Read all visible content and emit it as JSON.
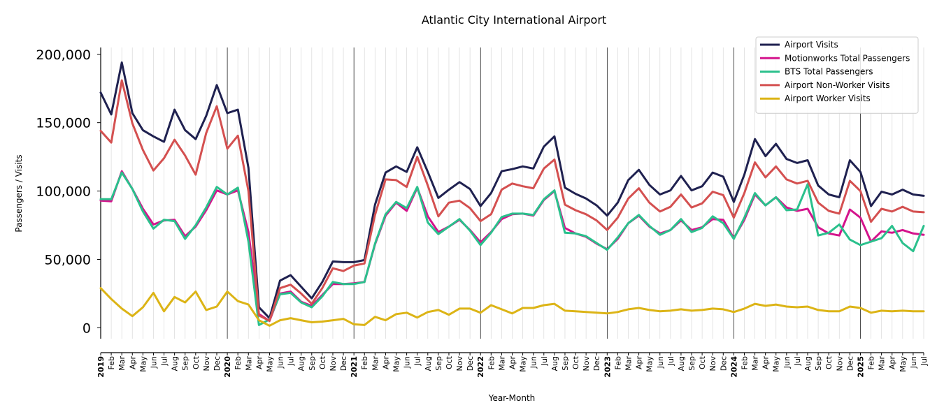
{
  "chart_data": {
    "type": "line",
    "title": "Atlantic City International Airport",
    "xlabel": "Year-Month",
    "ylabel": "Passengers / Visits",
    "ylim": [
      -8000,
      205000
    ],
    "yticks": [
      0,
      50000,
      100000,
      150000,
      200000
    ],
    "ytick_labels": [
      "0",
      "50,000",
      "100,000",
      "150,000",
      "200,000"
    ],
    "grid": "vertical monthly gridlines, darker lines at each January",
    "legend_position": "top-right",
    "x": [
      "2019-01",
      "2019-02",
      "2019-03",
      "2019-04",
      "2019-05",
      "2019-06",
      "2019-07",
      "2019-08",
      "2019-09",
      "2019-10",
      "2019-11",
      "2019-12",
      "2020-01",
      "2020-02",
      "2020-03",
      "2020-04",
      "2020-05",
      "2020-06",
      "2020-07",
      "2020-08",
      "2020-09",
      "2020-10",
      "2020-11",
      "2020-12",
      "2021-01",
      "2021-02",
      "2021-03",
      "2021-04",
      "2021-05",
      "2021-06",
      "2021-07",
      "2021-08",
      "2021-09",
      "2021-10",
      "2021-11",
      "2021-12",
      "2022-01",
      "2022-02",
      "2022-03",
      "2022-04",
      "2022-05",
      "2022-06",
      "2022-07",
      "2022-08",
      "2022-09",
      "2022-10",
      "2022-11",
      "2022-12",
      "2023-01",
      "2023-02",
      "2023-03",
      "2023-04",
      "2023-05",
      "2023-06",
      "2023-07",
      "2023-08",
      "2023-09",
      "2023-10",
      "2023-11",
      "2023-12",
      "2024-01",
      "2024-02",
      "2024-03",
      "2024-04",
      "2024-05",
      "2024-06",
      "2024-07",
      "2024-08",
      "2024-09",
      "2024-10",
      "2024-11",
      "2024-12",
      "2025-01",
      "2025-02",
      "2025-03",
      "2025-04",
      "2025-05",
      "2025-06",
      "2025-07"
    ],
    "xtick_labels": [
      "2019",
      "Feb",
      "Mar",
      "Apr",
      "May",
      "Jun",
      "Jul",
      "Aug",
      "Sep",
      "Oct",
      "Nov",
      "Dec",
      "2020",
      "Feb",
      "Mar",
      "Apr",
      "May",
      "Jun",
      "Jul",
      "Aug",
      "Sep",
      "Oct",
      "Nov",
      "Dec",
      "2021",
      "Feb",
      "Mar",
      "Apr",
      "May",
      "Jun",
      "Jul",
      "Aug",
      "Sep",
      "Oct",
      "Nov",
      "Dec",
      "2022",
      "Feb",
      "Mar",
      "Apr",
      "May",
      "Jun",
      "Jul",
      "Aug",
      "Sep",
      "Oct",
      "Nov",
      "Dec",
      "2023",
      "Feb",
      "Mar",
      "Apr",
      "May",
      "Jun",
      "Jul",
      "Aug",
      "Sep",
      "Oct",
      "Nov",
      "Dec",
      "2024",
      "Feb",
      "Mar",
      "Apr",
      "May",
      "Jun",
      "Jul",
      "Aug",
      "Sep",
      "Oct",
      "Nov",
      "Dec",
      "2025",
      "Feb",
      "Mar",
      "Apr",
      "May",
      "Jun",
      "Jul"
    ],
    "series": [
      {
        "name": "Airport Visits",
        "color": "#1f2150",
        "values": [
          172000,
          156000,
          194000,
          157000,
          144500,
          140000,
          136000,
          159500,
          144500,
          138000,
          155000,
          177500,
          157000,
          159500,
          117000,
          15000,
          7000,
          34500,
          38500,
          30000,
          21500,
          33500,
          48500,
          48000,
          48000,
          49500,
          90000,
          113500,
          118000,
          114000,
          132000,
          114000,
          95000,
          101000,
          106500,
          101500,
          89000,
          98500,
          114500,
          116000,
          118000,
          116500,
          132500,
          140000,
          102500,
          98000,
          94500,
          89500,
          82000,
          91500,
          108000,
          115500,
          104500,
          97500,
          100500,
          111000,
          100500,
          103500,
          113500,
          110500,
          92000,
          112000,
          138000,
          125500,
          134500,
          123500,
          120500,
          122500,
          104000,
          97500,
          95500,
          122500,
          114000,
          89000,
          99500,
          97500,
          101000,
          97500,
          96500
        ]
      },
      {
        "name": "Motionworks Total Passengers",
        "color": "#d4148c",
        "values": [
          93000,
          92500,
          114500,
          101500,
          87000,
          75500,
          78500,
          79000,
          67000,
          74000,
          86000,
          100500,
          97500,
          100500,
          70000,
          10000,
          5000,
          25000,
          26500,
          19000,
          16000,
          24000,
          32000,
          32000,
          32500,
          33500,
          61000,
          82000,
          91500,
          85500,
          102500,
          81500,
          70000,
          74000,
          79000,
          71500,
          62500,
          70000,
          79500,
          83000,
          83500,
          82000,
          93500,
          100000,
          73000,
          69000,
          66500,
          61500,
          57500,
          65000,
          76500,
          82000,
          74000,
          69000,
          71500,
          78500,
          71500,
          73500,
          79500,
          79000,
          65500,
          79000,
          97500,
          89500,
          95500,
          88000,
          85500,
          87000,
          73500,
          69000,
          67500,
          86500,
          80500,
          63000,
          70500,
          69500,
          71500,
          69000,
          68000
        ]
      },
      {
        "name": "BTS Total Passengers",
        "color": "#2ac08c",
        "values": [
          94000,
          94000,
          113500,
          101500,
          85000,
          72500,
          79000,
          78000,
          65000,
          75000,
          88000,
          103000,
          97500,
          102500,
          63000,
          2000,
          6000,
          24500,
          25500,
          18500,
          15000,
          23000,
          33500,
          32000,
          32000,
          33500,
          61500,
          83000,
          92000,
          87500,
          103000,
          77000,
          68500,
          74000,
          79500,
          71000,
          60500,
          69500,
          81000,
          83500,
          83500,
          82500,
          94000,
          100500,
          69500,
          69000,
          67000,
          62000,
          57000,
          66000,
          76500,
          82500,
          74500,
          68000,
          71500,
          79500,
          70000,
          73000,
          81500,
          76500,
          65000,
          80500,
          98500,
          89500,
          95500,
          86000,
          86500,
          105000,
          67500,
          69500,
          75500,
          64500,
          60500,
          63000,
          65500,
          74500,
          62000,
          56000,
          74500
        ]
      },
      {
        "name": "Airport Non-Worker Visits",
        "color": "#d45050",
        "values": [
          144000,
          135500,
          181000,
          149500,
          130000,
          115000,
          124000,
          137500,
          126000,
          112000,
          142500,
          162000,
          131000,
          140500,
          100000,
          9000,
          5000,
          29000,
          31500,
          25000,
          17500,
          29000,
          43500,
          41500,
          45500,
          47000,
          82500,
          108500,
          108000,
          103000,
          125000,
          104000,
          81500,
          91500,
          93000,
          87500,
          78000,
          83000,
          101000,
          105500,
          103500,
          102000,
          116500,
          123000,
          90000,
          86000,
          83000,
          78500,
          71500,
          80500,
          94500,
          102000,
          91500,
          85000,
          88500,
          97500,
          88000,
          91000,
          99500,
          97000,
          80500,
          98500,
          121000,
          110000,
          118000,
          108500,
          105500,
          107500,
          91500,
          85500,
          83500,
          107500,
          100000,
          77500,
          87000,
          85000,
          88500,
          85000,
          84500
        ]
      },
      {
        "name": "Airport Worker Visits",
        "color": "#dcb416",
        "values": [
          29000,
          21000,
          14000,
          8500,
          15000,
          25500,
          12000,
          22500,
          18500,
          26500,
          13000,
          15500,
          26500,
          19500,
          17000,
          5500,
          1500,
          5500,
          7000,
          5500,
          4000,
          4500,
          5500,
          6500,
          2500,
          2000,
          8000,
          5500,
          10000,
          11000,
          7500,
          11500,
          13000,
          9500,
          14000,
          14000,
          11000,
          16500,
          13500,
          10500,
          14500,
          14500,
          16500,
          17500,
          12500,
          12000,
          11500,
          11000,
          10500,
          11500,
          13500,
          14500,
          13000,
          12000,
          12500,
          13500,
          12500,
          13000,
          14000,
          13500,
          11500,
          14000,
          17500,
          16000,
          17000,
          15500,
          15000,
          15500,
          13000,
          12000,
          12000,
          15500,
          14500,
          11000,
          12500,
          12000,
          12500,
          12000,
          12000
        ]
      }
    ]
  }
}
